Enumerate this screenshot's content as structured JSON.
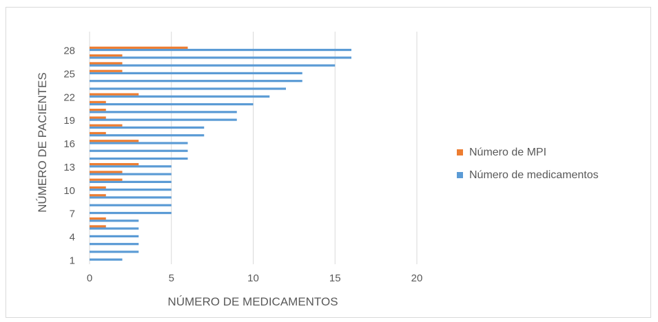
{
  "chart_data": {
    "type": "bar",
    "orientation": "horizontal",
    "title": "",
    "xlabel": "NÚMERO DE MEDICAMENTOS",
    "ylabel": "NÚMERO DE PACIENTES",
    "xlim": [
      0,
      20
    ],
    "xticks": [
      0,
      5,
      10,
      15,
      20
    ],
    "categories": [
      1,
      2,
      3,
      4,
      5,
      6,
      7,
      8,
      9,
      10,
      11,
      12,
      13,
      14,
      15,
      16,
      17,
      18,
      19,
      20,
      21,
      22,
      23,
      24,
      25,
      26,
      27,
      28
    ],
    "category_tick_labels": [
      "1",
      "4",
      "7",
      "10",
      "13",
      "16",
      "19",
      "22",
      "25",
      "28"
    ],
    "series": [
      {
        "name": "Número de MPI",
        "color": "#ED7D31",
        "values": [
          0,
          0,
          0,
          0,
          1,
          1,
          0,
          0,
          1,
          1,
          2,
          2,
          3,
          0,
          0,
          3,
          1,
          2,
          1,
          1,
          1,
          3,
          0,
          0,
          2,
          2,
          2,
          6
        ]
      },
      {
        "name": "Número de medicamentos",
        "color": "#5B9BD5",
        "values": [
          2,
          3,
          3,
          3,
          3,
          3,
          5,
          5,
          5,
          5,
          5,
          5,
          5,
          6,
          6,
          6,
          7,
          7,
          9,
          9,
          10,
          11,
          12,
          13,
          13,
          15,
          16,
          16
        ]
      }
    ],
    "grid": {
      "vertical": true,
      "horizontal": false,
      "color": "#d9d9d9"
    },
    "legend_position": "right"
  }
}
